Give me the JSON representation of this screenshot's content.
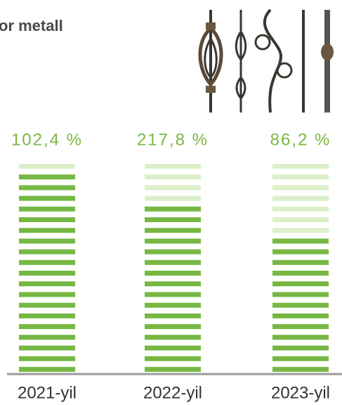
{
  "header": {
    "title": "or metall"
  },
  "stripes": 20,
  "columns": [
    {
      "value": 102.4,
      "value_label": "102,4 %",
      "year": "2021-yil",
      "filled": 19
    },
    {
      "value": 217.8,
      "value_label": "217,8 %",
      "year": "2022-yil",
      "filled": 16
    },
    {
      "value": 86.2,
      "value_label": "86,2 %",
      "year": "2023-yil",
      "filled": 13
    }
  ],
  "colors": {
    "filled": "#76b843",
    "empty": "#dcefc9"
  }
}
